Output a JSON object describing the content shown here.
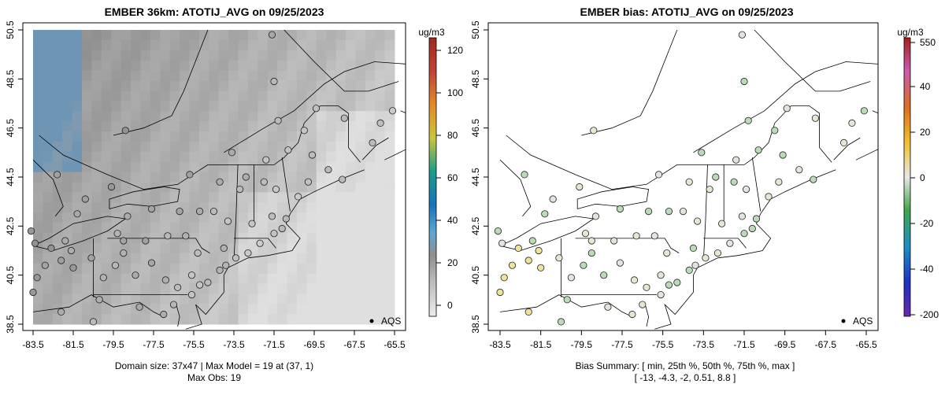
{
  "chart_data": [
    {
      "type": "heatmap",
      "title": "EMBER 36km: ATOTIJ_AVG on 09/25/2023",
      "xlim": [
        -84.5,
        -65
      ],
      "ylim": [
        38.3,
        50.7
      ],
      "x_ticks": [
        "-83.5",
        "-81.5",
        "-79.5",
        "-77.5",
        "-75.5",
        "-73.5",
        "-71.5",
        "-69.5",
        "-67.5",
        "-65.5"
      ],
      "y_ticks": [
        "38.5",
        "40.5",
        "42.5",
        "44.5",
        "46.5",
        "48.5",
        "50.5"
      ],
      "colorbar": {
        "units": "ug/m3",
        "range": [
          -8,
          125
        ],
        "labels": [
          "0",
          "20",
          "40",
          "60",
          "80",
          "100",
          "120"
        ],
        "colors": [
          "#ededed",
          "#9f9f9f",
          "#5fa7d3",
          "#1a72b8",
          "#1c9d8c",
          "#cac63a",
          "#e28b27",
          "#c14235",
          "#a02a1f"
        ]
      },
      "legend_label": "AQS",
      "subtitle_1": "Domain size: 37x47 | Max Model = 19 at (37, 1)",
      "subtitle_2": "Max Obs: 19",
      "model_value_range": [
        0,
        19
      ],
      "obs_value_range": [
        1,
        19
      ]
    },
    {
      "type": "scatter",
      "title": "EMBER bias: ATOTIJ_AVG on 09/25/2023",
      "xlim": [
        -84.5,
        -65
      ],
      "ylim": [
        38.3,
        50.7
      ],
      "x_ticks": [
        "-83.5",
        "-81.5",
        "-79.5",
        "-77.5",
        "-75.5",
        "-73.5",
        "-71.5",
        "-69.5",
        "-67.5",
        "-65.5"
      ],
      "y_ticks": [
        "38.5",
        "40.5",
        "42.5",
        "44.5",
        "46.5",
        "48.5",
        "50.5"
      ],
      "colorbar": {
        "units": "ug/m3",
        "labels": [
          "550",
          "40",
          "20",
          "0",
          "-20",
          "-40",
          "-200"
        ],
        "colors": [
          "#a8211c",
          "#c85ab1",
          "#de6e1e",
          "#f2c231",
          "#e8e8e8",
          "#3fa64a",
          "#1d8fc5",
          "#1c32c2",
          "#6b2aa9"
        ]
      },
      "legend_label": "AQS",
      "subtitle_1": "Bias Summary: [ min, 25th %, 50th %, 75th %, max ]",
      "subtitle_2": "[ -13,   -4.3,   -2,   0.51,   8.8 ]",
      "bias_summary": [
        -13,
        -4.3,
        -2,
        0.51,
        8.8
      ]
    }
  ]
}
